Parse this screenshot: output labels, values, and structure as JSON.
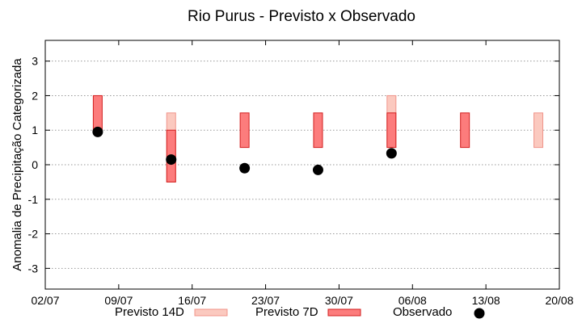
{
  "chart_data": {
    "type": "range-bar-with-points",
    "title": "Rio Purus - Previsto x Observado",
    "xlabel": "",
    "ylabel": "Anomalia de Precipitação Categorizada",
    "xlim": [
      "2025-07-02",
      "2025-08-20"
    ],
    "ylim": [
      -3.6,
      3.6
    ],
    "x_ticks": [
      {
        "date": "2025-07-02",
        "label": "02/07"
      },
      {
        "date": "2025-07-09",
        "label": "09/07"
      },
      {
        "date": "2025-07-16",
        "label": "16/07"
      },
      {
        "date": "2025-07-23",
        "label": "23/07"
      },
      {
        "date": "2025-07-30",
        "label": "30/07"
      },
      {
        "date": "2025-08-06",
        "label": "06/08"
      },
      {
        "date": "2025-08-13",
        "label": "13/08"
      },
      {
        "date": "2025-08-20",
        "label": "20/08"
      }
    ],
    "y_ticks": [
      {
        "value": 3,
        "label": "3"
      },
      {
        "value": 2,
        "label": "2"
      },
      {
        "value": 1,
        "label": "1"
      },
      {
        "value": 0,
        "label": "0"
      },
      {
        "value": -1,
        "label": "-1"
      },
      {
        "value": -2,
        "label": "-2"
      },
      {
        "value": -3,
        "label": "-3"
      }
    ],
    "grid": "horizontal dotted",
    "legend_position": "bottom",
    "series": [
      {
        "name": "Previsto 14D",
        "kind": "range",
        "color": "#fbc9bf",
        "edge": "#f0948a",
        "points": [
          {
            "date": "2025-07-14",
            "low": -0.5,
            "high": 1.5
          },
          {
            "date": "2025-08-04",
            "low": 0.5,
            "high": 2.0
          },
          {
            "date": "2025-08-18",
            "low": 0.5,
            "high": 1.5
          }
        ]
      },
      {
        "name": "Previsto 7D",
        "kind": "range",
        "color": "#fc7c7c",
        "edge": "#d21e1e",
        "points": [
          {
            "date": "2025-07-07",
            "low": 1.0,
            "high": 2.0
          },
          {
            "date": "2025-07-14",
            "low": -0.5,
            "high": 1.0
          },
          {
            "date": "2025-07-21",
            "low": 0.5,
            "high": 1.5
          },
          {
            "date": "2025-07-28",
            "low": 0.5,
            "high": 1.5
          },
          {
            "date": "2025-08-04",
            "low": 0.5,
            "high": 1.5
          },
          {
            "date": "2025-08-11",
            "low": 0.5,
            "high": 1.5
          }
        ]
      },
      {
        "name": "Observado",
        "kind": "point",
        "color": "#000000",
        "points": [
          {
            "date": "2025-07-07",
            "value": 0.95
          },
          {
            "date": "2025-07-14",
            "value": 0.15
          },
          {
            "date": "2025-07-21",
            "value": -0.1
          },
          {
            "date": "2025-07-28",
            "value": -0.15
          },
          {
            "date": "2025-08-04",
            "value": 0.33
          }
        ]
      }
    ]
  }
}
